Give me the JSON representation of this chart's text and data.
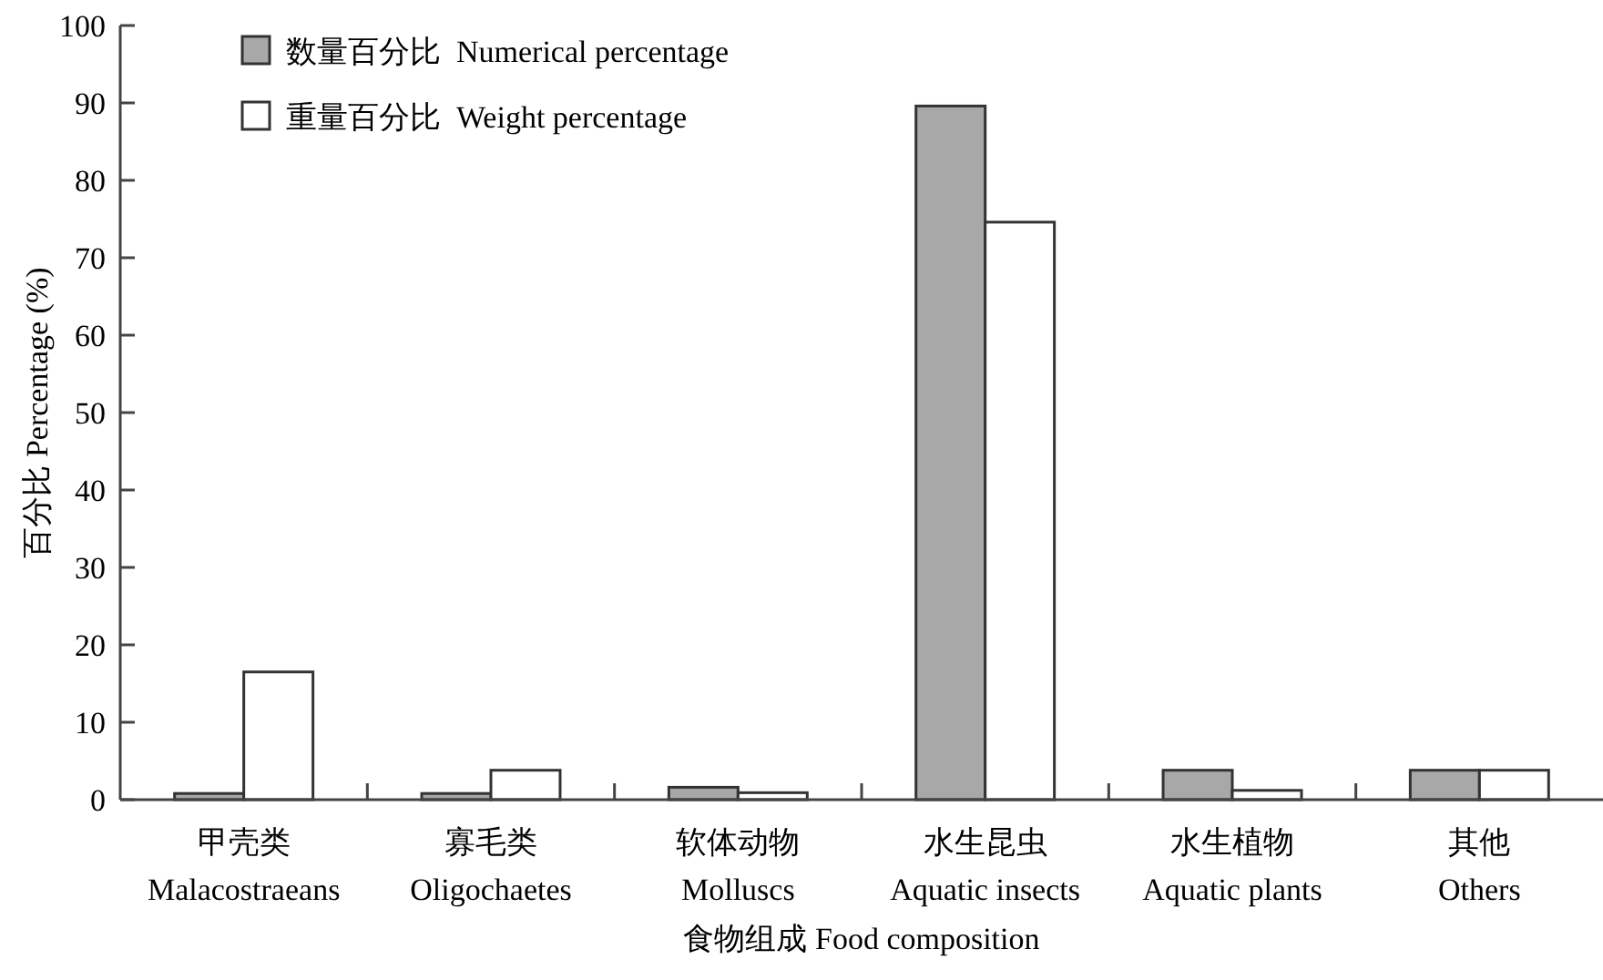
{
  "chart_data": {
    "type": "bar",
    "xlabel": "食物组成 Food composition",
    "ylabel": "百分比 Percentage (%)",
    "categories": [
      "甲壳类\nMalacostraeans",
      "寡毛类\nOligochaetes",
      "软体动物\nMolluscs",
      "水生昆虫\nAquatic insects",
      "水生植物\nAquatic plants",
      "其他\nOthers"
    ],
    "series": [
      {
        "name": "数量百分比  Numerical percentage",
        "color": "#a8a8a8",
        "values": [
          0.8,
          0.8,
          1.6,
          89.6,
          3.8,
          3.8
        ]
      },
      {
        "name": "重量百分比  Weight percentage",
        "color": "#ffffff",
        "values": [
          16.5,
          3.8,
          0.9,
          74.6,
          1.2,
          3.8
        ]
      }
    ],
    "ylim": [
      0,
      100
    ],
    "yticks": [
      0,
      10,
      20,
      30,
      40,
      50,
      60,
      70,
      80,
      90,
      100
    ],
    "grid": false,
    "legend": "top left"
  }
}
